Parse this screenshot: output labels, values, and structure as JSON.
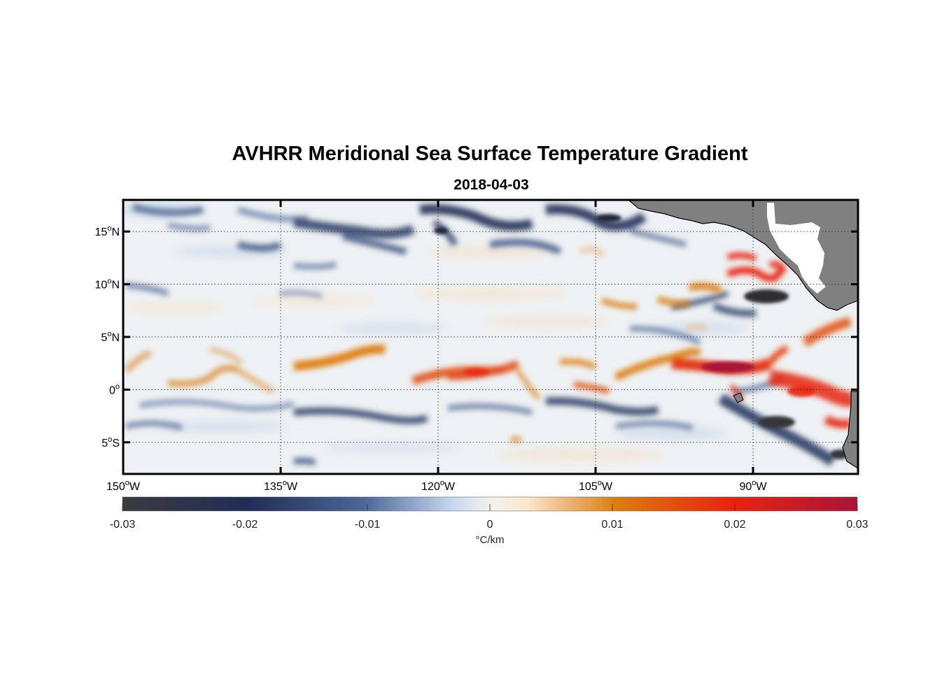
{
  "title": "AVHRR Meridional Sea Surface Temperature Gradient",
  "subtitle": "2018-04-03",
  "map": {
    "lon_range": [
      -150,
      -80
    ],
    "lat_range": [
      -8,
      18
    ],
    "lon_ticks": [
      {
        "value": -150,
        "deg": "150",
        "sup": "o",
        "hemi": "W"
      },
      {
        "value": -135,
        "deg": "135",
        "sup": "o",
        "hemi": "W"
      },
      {
        "value": -120,
        "deg": "120",
        "sup": "o",
        "hemi": "W"
      },
      {
        "value": -105,
        "deg": "105",
        "sup": "o",
        "hemi": "W"
      },
      {
        "value": -90,
        "deg": "90",
        "sup": "o",
        "hemi": "W"
      }
    ],
    "lat_ticks": [
      {
        "value": 15,
        "deg": "15",
        "sup": "o",
        "hemi": "N"
      },
      {
        "value": 10,
        "deg": "10",
        "sup": "o",
        "hemi": "N"
      },
      {
        "value": 5,
        "deg": "5",
        "sup": "o",
        "hemi": "N"
      },
      {
        "value": 0,
        "deg": "0",
        "sup": "o",
        "hemi": ""
      },
      {
        "value": -5,
        "deg": "5",
        "sup": "o",
        "hemi": "S"
      }
    ],
    "gridlines": true,
    "land_color": "#808080",
    "ocean_background": "#eef1f3"
  },
  "colorbar": {
    "range": [
      -0.03,
      0.03
    ],
    "ticks": [
      "-0.03",
      "-0.02",
      "-0.01",
      "0",
      "0.01",
      "0.02",
      "0.03"
    ],
    "unit": "°C/km",
    "colors": [
      "#3b3b3f",
      "#1f2d55",
      "#4e6797",
      "#c7d9f0",
      "#fbe7cf",
      "#dd7d10",
      "#e8230d",
      "#a8153a"
    ]
  }
}
